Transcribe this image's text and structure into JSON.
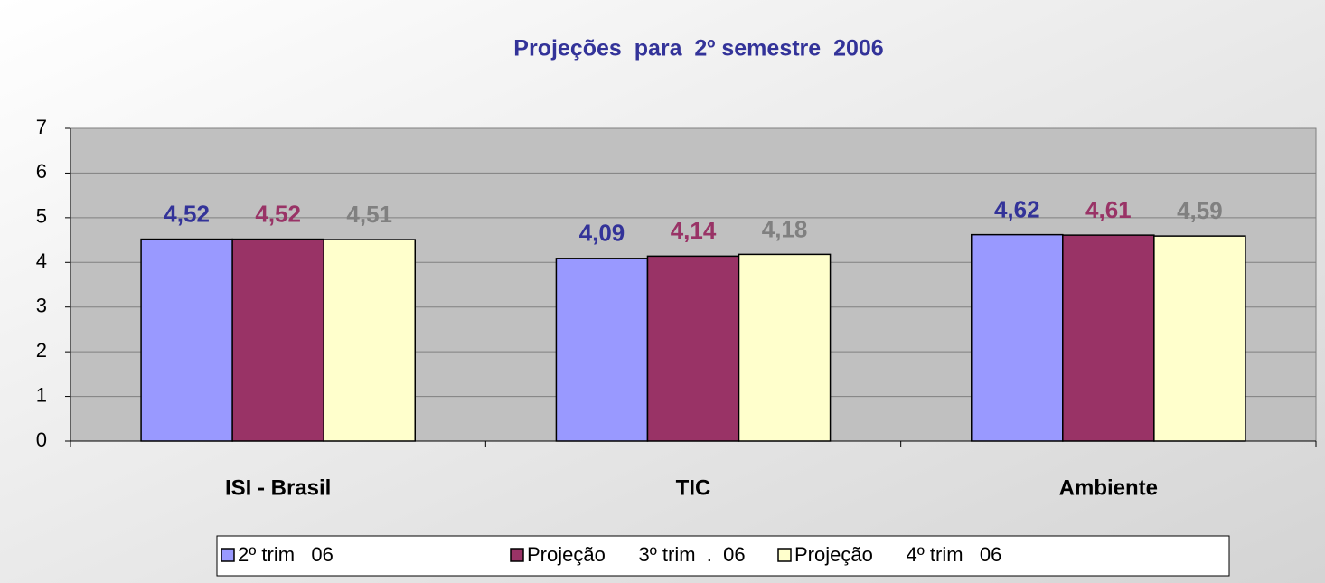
{
  "chart_data": {
    "type": "bar",
    "title": "Projeções  para  2º semestre  2006",
    "categories": [
      "ISI - Brasil",
      "TIC",
      "Ambiente"
    ],
    "series": [
      {
        "name": "2º trim   06",
        "color": "#9999ff",
        "label_color": "#333399",
        "values": [
          4.52,
          4.09,
          4.62
        ],
        "value_labels": [
          "4,52",
          "4,09",
          "4,62"
        ]
      },
      {
        "name": "Projeção      3º trim  .  06",
        "color": "#993366",
        "label_color": "#993366",
        "values": [
          4.52,
          4.14,
          4.61
        ],
        "value_labels": [
          "4,52",
          "4,14",
          "4,61"
        ]
      },
      {
        "name": "Projeção      4º trim   06",
        "color": "#ffffcc",
        "label_color": "#808080",
        "values": [
          4.51,
          4.18,
          4.59
        ],
        "value_labels": [
          "4,51",
          "4,18",
          "4,59"
        ]
      }
    ],
    "ylim": [
      0,
      7
    ],
    "yticks": [
      0,
      1,
      2,
      3,
      4,
      5,
      6,
      7
    ],
    "grid": true,
    "legend": "bottom"
  }
}
